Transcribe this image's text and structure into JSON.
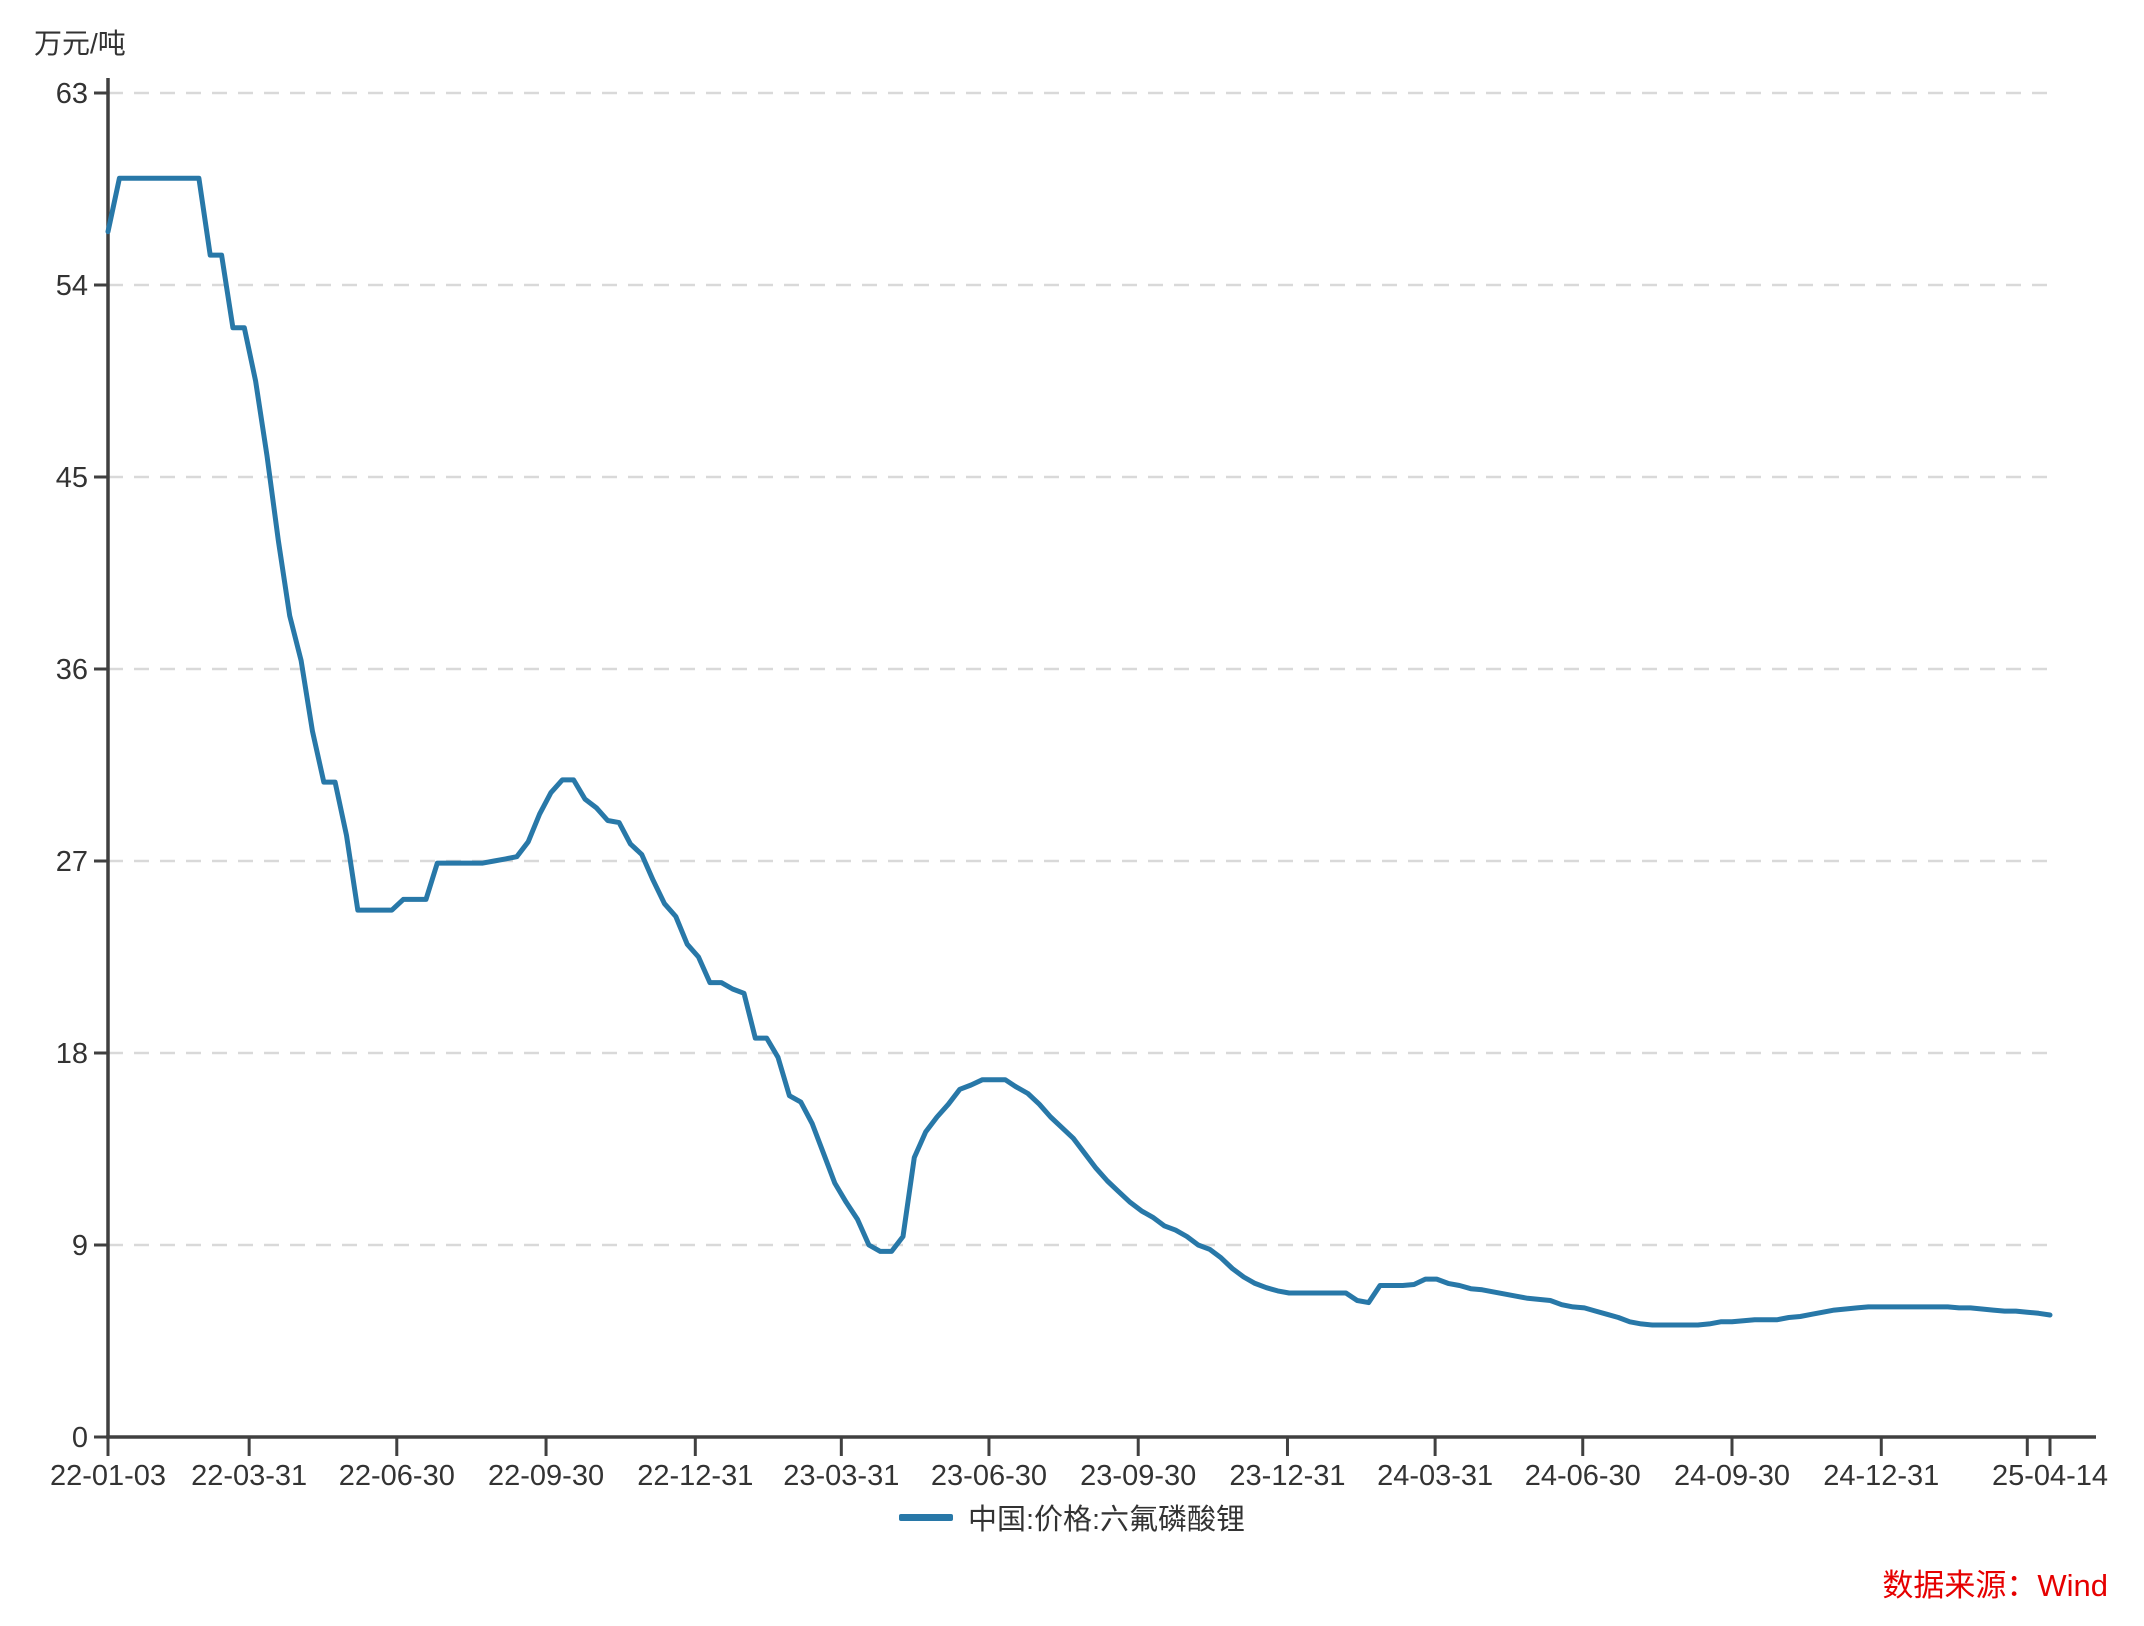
{
  "unit": {
    "label": "万元/吨"
  },
  "legend": {
    "label": "中国:价格:六氟磷酸锂"
  },
  "footer": {
    "source_label": "数据来源：Wind",
    "color": "#e60000"
  },
  "chart_data": {
    "type": "line",
    "title": "",
    "xlabel": "",
    "ylabel": "万元/吨",
    "ylim": [
      0,
      63
    ],
    "y_ticks": [
      0,
      9,
      18,
      27,
      36,
      45,
      54,
      63
    ],
    "grid": "horizontal-dashed",
    "grid_color": "#d9d9d9",
    "axis_color": "#404040",
    "text_color": "#333333",
    "legend_position": "bottom-center",
    "x_range": [
      "2022-01-03",
      "2025-04-14"
    ],
    "x_ticks": [
      {
        "label": "22-01-03",
        "date": "2022-01-03"
      },
      {
        "label": "22-03-31",
        "date": "2022-03-31"
      },
      {
        "label": "22-06-30",
        "date": "2022-06-30"
      },
      {
        "label": "22-09-30",
        "date": "2022-09-30"
      },
      {
        "label": "22-12-31",
        "date": "2022-12-31"
      },
      {
        "label": "23-03-31",
        "date": "2023-03-31"
      },
      {
        "label": "23-06-30",
        "date": "2023-06-30"
      },
      {
        "label": "23-09-30",
        "date": "2023-09-30"
      },
      {
        "label": "23-12-31",
        "date": "2023-12-31"
      },
      {
        "label": "24-03-31",
        "date": "2024-03-31"
      },
      {
        "label": "24-06-30",
        "date": "2024-06-30"
      },
      {
        "label": "24-09-30",
        "date": "2024-09-30"
      },
      {
        "label": "24-12-31",
        "date": "2024-12-31"
      },
      {
        "label": "",
        "date": "2025-03-31"
      },
      {
        "label": "25-04-14",
        "date": "2025-04-14"
      }
    ],
    "series": [
      {
        "name": "中国:价格:六氟磷酸锂",
        "color": "#2878a8",
        "line_width": 5,
        "x": [
          "2022-01-03",
          "2022-01-10",
          "2022-01-17",
          "2022-01-24",
          "2022-01-31",
          "2022-02-07",
          "2022-02-14",
          "2022-02-21",
          "2022-02-28",
          "2022-03-07",
          "2022-03-14",
          "2022-03-21",
          "2022-03-28",
          "2022-04-04",
          "2022-04-11",
          "2022-04-18",
          "2022-04-25",
          "2022-05-02",
          "2022-05-09",
          "2022-05-16",
          "2022-05-23",
          "2022-05-30",
          "2022-06-06",
          "2022-06-13",
          "2022-06-20",
          "2022-06-27",
          "2022-07-04",
          "2022-07-11",
          "2022-07-18",
          "2022-07-25",
          "2022-08-01",
          "2022-08-08",
          "2022-08-15",
          "2022-08-22",
          "2022-08-29",
          "2022-09-05",
          "2022-09-12",
          "2022-09-19",
          "2022-09-26",
          "2022-10-03",
          "2022-10-10",
          "2022-10-17",
          "2022-10-24",
          "2022-10-31",
          "2022-11-07",
          "2022-11-14",
          "2022-11-21",
          "2022-11-28",
          "2022-12-05",
          "2022-12-12",
          "2022-12-19",
          "2022-12-26",
          "2023-01-02",
          "2023-01-09",
          "2023-01-16",
          "2023-01-23",
          "2023-01-30",
          "2023-02-06",
          "2023-02-13",
          "2023-02-20",
          "2023-02-27",
          "2023-03-06",
          "2023-03-13",
          "2023-03-20",
          "2023-03-27",
          "2023-04-03",
          "2023-04-10",
          "2023-04-17",
          "2023-04-24",
          "2023-05-01",
          "2023-05-08",
          "2023-05-15",
          "2023-05-22",
          "2023-05-29",
          "2023-06-05",
          "2023-06-12",
          "2023-06-19",
          "2023-06-26",
          "2023-07-03",
          "2023-07-10",
          "2023-07-17",
          "2023-07-24",
          "2023-07-31",
          "2023-08-07",
          "2023-08-14",
          "2023-08-21",
          "2023-08-28",
          "2023-09-04",
          "2023-09-11",
          "2023-09-18",
          "2023-09-25",
          "2023-10-02",
          "2023-10-09",
          "2023-10-16",
          "2023-10-23",
          "2023-10-30",
          "2023-11-06",
          "2023-11-13",
          "2023-11-20",
          "2023-11-27",
          "2023-12-04",
          "2023-12-11",
          "2023-12-18",
          "2023-12-25",
          "2024-01-01",
          "2024-01-08",
          "2024-01-15",
          "2024-01-22",
          "2024-01-29",
          "2024-02-05",
          "2024-02-12",
          "2024-02-19",
          "2024-02-26",
          "2024-03-04",
          "2024-03-11",
          "2024-03-18",
          "2024-03-25",
          "2024-04-01",
          "2024-04-08",
          "2024-04-15",
          "2024-04-22",
          "2024-04-29",
          "2024-05-06",
          "2024-05-13",
          "2024-05-20",
          "2024-05-27",
          "2024-06-03",
          "2024-06-10",
          "2024-06-17",
          "2024-06-24",
          "2024-07-01",
          "2024-07-08",
          "2024-07-15",
          "2024-07-22",
          "2024-07-29",
          "2024-08-05",
          "2024-08-12",
          "2024-08-19",
          "2024-08-26",
          "2024-09-02",
          "2024-09-09",
          "2024-09-16",
          "2024-09-23",
          "2024-09-30",
          "2024-10-07",
          "2024-10-14",
          "2024-10-21",
          "2024-10-28",
          "2024-11-04",
          "2024-11-11",
          "2024-11-18",
          "2024-11-25",
          "2024-12-02",
          "2024-12-09",
          "2024-12-16",
          "2024-12-23",
          "2024-12-30",
          "2025-01-06",
          "2025-01-13",
          "2025-01-20",
          "2025-01-27",
          "2025-02-03",
          "2025-02-10",
          "2025-02-17",
          "2025-02-24",
          "2025-03-03",
          "2025-03-10",
          "2025-03-17",
          "2025-03-24",
          "2025-03-31",
          "2025-04-07",
          "2025-04-14"
        ],
        "values": [
          56.5,
          59,
          59,
          59,
          59,
          59,
          59,
          59,
          59,
          55.4,
          55.4,
          52,
          52,
          49.5,
          46,
          42,
          38.5,
          36.4,
          33.1,
          30.7,
          30.7,
          28.2,
          24.7,
          24.7,
          24.7,
          24.7,
          25.2,
          25.2,
          25.2,
          26.9,
          26.9,
          26.9,
          26.9,
          26.9,
          27,
          27.1,
          27.2,
          27.9,
          29.2,
          30.2,
          30.8,
          30.8,
          29.9,
          29.5,
          28.9,
          28.8,
          27.8,
          27.3,
          26.1,
          25,
          24.4,
          23.1,
          22.5,
          21.3,
          21.3,
          21,
          20.8,
          18.7,
          18.7,
          17.8,
          16,
          15.7,
          14.7,
          13.3,
          11.9,
          11,
          10.2,
          9,
          8.7,
          8.7,
          9.4,
          13.1,
          14.3,
          15,
          15.6,
          16.3,
          16.5,
          16.75,
          16.75,
          16.75,
          16.4,
          16.1,
          15.6,
          15,
          14.5,
          14,
          13.3,
          12.6,
          12,
          11.5,
          11,
          10.6,
          10.3,
          9.9,
          9.7,
          9.4,
          9,
          8.8,
          8.4,
          7.9,
          7.5,
          7.2,
          7,
          6.85,
          6.75,
          6.75,
          6.75,
          6.75,
          6.75,
          6.75,
          6.4,
          6.3,
          7.1,
          7.1,
          7.1,
          7.15,
          7.4,
          7.4,
          7.2,
          7.1,
          6.95,
          6.9,
          6.8,
          6.7,
          6.6,
          6.5,
          6.45,
          6.4,
          6.2,
          6.1,
          6.05,
          5.9,
          5.75,
          5.6,
          5.4,
          5.3,
          5.25,
          5.25,
          5.25,
          5.25,
          5.25,
          5.3,
          5.4,
          5.4,
          5.45,
          5.5,
          5.5,
          5.5,
          5.6,
          5.65,
          5.75,
          5.85,
          5.95,
          6,
          6.05,
          6.1,
          6.1,
          6.1,
          6.1,
          6.1,
          6.1,
          6.1,
          6.1,
          6.05,
          6.05,
          6,
          5.95,
          5.9,
          5.9,
          5.85,
          5.8,
          5.72
        ]
      }
    ]
  }
}
